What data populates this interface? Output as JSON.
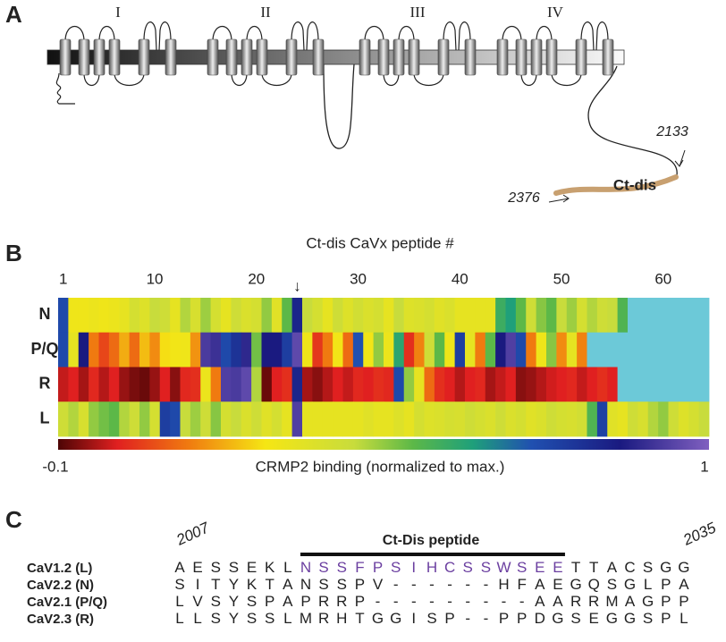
{
  "panels": [
    "A",
    "B",
    "C"
  ],
  "diagram": {
    "domains": [
      "I",
      "II",
      "III",
      "IV"
    ],
    "ct_label": "Ct-dis",
    "residue_labels": [
      "2133",
      "2376"
    ]
  },
  "chart_data": {
    "type": "heatmap",
    "x_label": "Ct-dis CaVx peptide #",
    "rows": [
      "N",
      "P/Q",
      "R",
      "L"
    ],
    "xlim": [
      0.5,
      64.5
    ],
    "xticks": [
      1,
      10,
      20,
      30,
      40,
      50,
      60
    ],
    "annotations": [
      {
        "x": 24,
        "text": "↓"
      }
    ],
    "null_color": "#6cc9d8",
    "values": [
      [
        0.72,
        0.27,
        0.27,
        0.28,
        0.27,
        0.28,
        0.3,
        0.36,
        0.33,
        0.4,
        0.38,
        0.3,
        0.42,
        0.35,
        0.44,
        0.36,
        0.3,
        0.38,
        0.34,
        0.36,
        0.45,
        0.32,
        0.5,
        0.82,
        0.4,
        0.36,
        0.3,
        0.38,
        0.33,
        0.37,
        0.34,
        0.36,
        0.3,
        0.4,
        0.33,
        0.34,
        0.36,
        0.32,
        0.34,
        0.3,
        0.3,
        0.3,
        0.3,
        0.55,
        0.6,
        0.5,
        0.38,
        0.46,
        0.5,
        0.4,
        0.44,
        0.36,
        0.42,
        0.38,
        0.4,
        0.52,
        null,
        null,
        null,
        null,
        null,
        null,
        null,
        null
      ],
      [
        0.72,
        0.3,
        0.85,
        0.12,
        0.05,
        0.1,
        0.18,
        0.1,
        0.2,
        0.14,
        0.24,
        0.26,
        0.27,
        0.15,
        0.92,
        0.9,
        0.72,
        0.78,
        0.88,
        0.48,
        0.85,
        0.85,
        0.75,
        0.95,
        0.27,
        0.03,
        0.12,
        0.26,
        0.1,
        0.7,
        0.26,
        0.45,
        0.28,
        0.58,
        0.02,
        0.13,
        0.38,
        0.5,
        0.27,
        0.75,
        0.3,
        0.12,
        0.5,
        0.85,
        0.93,
        0.72,
        0.12,
        0.27,
        0.46,
        0.14,
        0.3,
        0.13,
        null,
        null,
        null,
        null,
        null,
        null,
        null,
        null,
        null,
        null,
        null,
        null
      ],
      [
        -0.02,
        0,
        -0.04,
        0.01,
        -0.03,
        0,
        -0.05,
        -0.07,
        -0.08,
        -0.05,
        0,
        -0.06,
        0.01,
        0.02,
        0.28,
        0.12,
        0.93,
        0.92,
        0.95,
        0.42,
        -0.08,
        0,
        0.02,
        0.82,
        -0.04,
        -0.06,
        -0.03,
        0,
        -0.02,
        0.01,
        0,
        0.02,
        0.01,
        0.72,
        0.45,
        0.3,
        0.1,
        0.02,
        0,
        -0.03,
        0,
        0.01,
        -0.04,
        -0.02,
        0,
        -0.06,
        -0.05,
        -0.03,
        -0.01,
        0,
        0.01,
        -0.02,
        0,
        0.02,
        0,
        null,
        null,
        null,
        null,
        null,
        null,
        null,
        null,
        null
      ],
      [
        0.38,
        0.42,
        0.35,
        0.45,
        0.48,
        0.5,
        0.42,
        0.38,
        0.45,
        0.36,
        0.75,
        0.72,
        0.4,
        0.44,
        0.38,
        0.46,
        0.36,
        0.4,
        0.34,
        0.38,
        0.32,
        0.36,
        0.3,
        0.93,
        0.3,
        0.3,
        0.3,
        0.3,
        0.3,
        0.3,
        0.32,
        0.3,
        0.3,
        0.33,
        0.3,
        0.36,
        0.33,
        0.34,
        0.36,
        0.35,
        0.38,
        0.36,
        0.34,
        0.38,
        0.34,
        0.36,
        0.32,
        0.34,
        0.38,
        0.36,
        0.35,
        0.37,
        0.52,
        0.74,
        0.32,
        0.3,
        0.38,
        0.35,
        0.42,
        0.45,
        0.38,
        0.33,
        0.36,
        0.4
      ]
    ],
    "colorbar": {
      "label": "CRMP2 binding (normalized to max.)",
      "clim": [
        -0.1,
        1
      ],
      "stops": [
        {
          "value": -0.1,
          "color": "#4d0505"
        },
        {
          "value": 0,
          "color": "#e02020"
        },
        {
          "value": 0.12,
          "color": "#f07a10"
        },
        {
          "value": 0.25,
          "color": "#f5e614"
        },
        {
          "value": 0.4,
          "color": "#c8dc3c"
        },
        {
          "value": 0.5,
          "color": "#5cb848"
        },
        {
          "value": 0.6,
          "color": "#1fa07a"
        },
        {
          "value": 0.7,
          "color": "#2050b0"
        },
        {
          "value": 0.85,
          "color": "#1a1a80"
        },
        {
          "value": 1,
          "color": "#8060c0"
        }
      ]
    }
  },
  "alignment": {
    "start_label": "2007",
    "end_label": "2035",
    "peptide_label": "Ct-Dis peptide",
    "rows": [
      {
        "label": "CaV1.2 (L)",
        "segments": [
          {
            "text": "AESSEKL"
          },
          {
            "text": "NSSFPSIHCSSWSEE",
            "color": "#6b3fa0"
          },
          {
            "text": "TTACSGG"
          }
        ]
      },
      {
        "label": "CaV2.2 (N)",
        "segments": [
          {
            "text": "SITYKTANSSPV------HFAEGQSGLPA"
          }
        ]
      },
      {
        "label": "CaV2.1 (P/Q)",
        "segments": [
          {
            "text": "LVSYSPAPRRP---------AARRMAGPP"
          }
        ]
      },
      {
        "label": "CaV2.3 (R)",
        "segments": [
          {
            "text": "LLSYSSLMRHTGGISP--PPDGSEGGSPL"
          }
        ]
      }
    ]
  }
}
